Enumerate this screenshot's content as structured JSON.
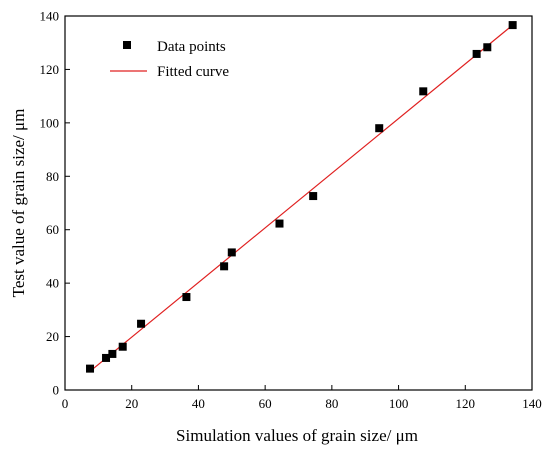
{
  "chart_data": {
    "type": "scatter",
    "xlabel": "Simulation values of grain size/ μm",
    "ylabel": "Test value of grain size/ μm",
    "xlim": [
      0,
      140
    ],
    "ylim": [
      0,
      140
    ],
    "x_ticks": [
      0,
      20,
      40,
      60,
      80,
      100,
      120,
      140
    ],
    "y_ticks": [
      0,
      20,
      40,
      60,
      80,
      100,
      120,
      140
    ],
    "grid": false,
    "legend_position": "top-left",
    "series": [
      {
        "name": "Data points",
        "type": "scatter",
        "marker": "square",
        "color": "#000000",
        "points": [
          [
            7.5,
            8
          ],
          [
            12.3,
            12
          ],
          [
            14.2,
            13.5
          ],
          [
            17.3,
            16.2
          ],
          [
            22.8,
            24.8
          ],
          [
            36.4,
            34.8
          ],
          [
            47.7,
            46.3
          ],
          [
            50,
            51.5
          ],
          [
            64.3,
            62.3
          ],
          [
            74.4,
            72.6
          ],
          [
            94.2,
            98
          ],
          [
            107.4,
            111.8
          ],
          [
            123.4,
            125.8
          ],
          [
            126.6,
            128.3
          ],
          [
            134.2,
            136.6
          ]
        ]
      },
      {
        "name": "Fitted curve",
        "type": "line",
        "color": "#e02020",
        "points": [
          [
            7.5,
            7
          ],
          [
            134.2,
            136.6
          ]
        ]
      }
    ]
  }
}
